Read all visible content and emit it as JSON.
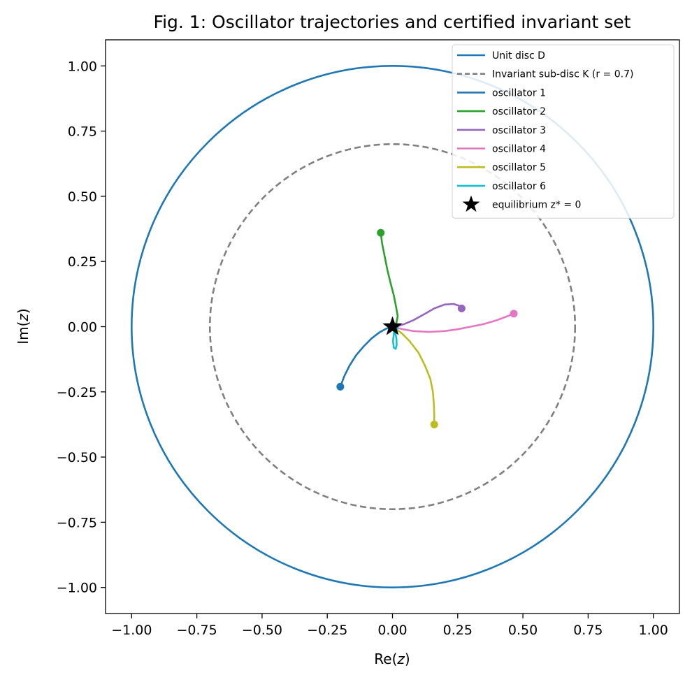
{
  "chart_data": {
    "type": "line",
    "title": "Fig. 1: Oscillator trajectories and certified invariant set",
    "xlabel": "Re(z)",
    "ylabel": "Im(z)",
    "xlim": [
      -1.1,
      1.1
    ],
    "ylim": [
      -1.1,
      1.1
    ],
    "xticks": [
      -1.0,
      -0.75,
      -0.5,
      -0.25,
      0.0,
      0.25,
      0.5,
      0.75,
      1.0
    ],
    "yticks": [
      -1.0,
      -0.75,
      -0.5,
      -0.25,
      0.0,
      0.25,
      0.5,
      0.75,
      1.0
    ],
    "xtick_labels": [
      "−1.00",
      "−0.75",
      "−0.50",
      "−0.25",
      "0.00",
      "0.25",
      "0.50",
      "0.75",
      "1.00"
    ],
    "ytick_labels": [
      "−1.00",
      "−0.75",
      "−0.50",
      "−0.25",
      "0.00",
      "0.25",
      "0.50",
      "0.75",
      "1.00"
    ],
    "grid": false,
    "legend_position": "top-right",
    "unit_disc": {
      "label": "Unit disc D",
      "radius": 1.0,
      "color": "#1f77b4",
      "style": "solid"
    },
    "invariant_disc": {
      "label": "Invariant sub-disc K (r = 0.7)",
      "radius": 0.7,
      "color": "#808080",
      "style": "dashed"
    },
    "series": [
      {
        "name": "oscillator 1",
        "color": "#1f77b4",
        "points": [
          [
            -0.2,
            -0.23
          ],
          [
            -0.185,
            -0.19
          ],
          [
            -0.165,
            -0.15
          ],
          [
            -0.14,
            -0.11
          ],
          [
            -0.11,
            -0.075
          ],
          [
            -0.08,
            -0.045
          ],
          [
            -0.05,
            -0.022
          ],
          [
            -0.025,
            -0.008
          ],
          [
            0,
            0
          ]
        ]
      },
      {
        "name": "oscillator 2",
        "color": "#2ca02c",
        "points": [
          [
            -0.045,
            0.36
          ],
          [
            -0.04,
            0.32
          ],
          [
            -0.03,
            0.27
          ],
          [
            -0.02,
            0.22
          ],
          [
            -0.008,
            0.17
          ],
          [
            0.005,
            0.12
          ],
          [
            0.014,
            0.075
          ],
          [
            0.02,
            0.04
          ],
          [
            0.015,
            0.015
          ],
          [
            0,
            0
          ]
        ]
      },
      {
        "name": "oscillator 3",
        "color": "#9467bd",
        "points": [
          [
            0.265,
            0.07
          ],
          [
            0.255,
            0.08
          ],
          [
            0.235,
            0.087
          ],
          [
            0.2,
            0.085
          ],
          [
            0.16,
            0.07
          ],
          [
            0.12,
            0.047
          ],
          [
            0.08,
            0.025
          ],
          [
            0.045,
            0.01
          ],
          [
            0.02,
            0.002
          ],
          [
            0,
            0
          ]
        ]
      },
      {
        "name": "oscillator 4",
        "color": "#e377c2",
        "points": [
          [
            0.465,
            0.05
          ],
          [
            0.44,
            0.04
          ],
          [
            0.4,
            0.025
          ],
          [
            0.35,
            0.01
          ],
          [
            0.3,
            0
          ],
          [
            0.25,
            -0.01
          ],
          [
            0.2,
            -0.017
          ],
          [
            0.14,
            -0.02
          ],
          [
            0.08,
            -0.017
          ],
          [
            0.04,
            -0.01
          ],
          [
            0,
            0
          ]
        ]
      },
      {
        "name": "oscillator 5",
        "color": "#bcbd22",
        "points": [
          [
            0.16,
            -0.375
          ],
          [
            0.16,
            -0.34
          ],
          [
            0.159,
            -0.3
          ],
          [
            0.155,
            -0.25
          ],
          [
            0.145,
            -0.2
          ],
          [
            0.125,
            -0.15
          ],
          [
            0.1,
            -0.1
          ],
          [
            0.065,
            -0.055
          ],
          [
            0.035,
            -0.025
          ],
          [
            0.012,
            -0.008
          ],
          [
            0,
            0
          ]
        ]
      },
      {
        "name": "oscillator 6",
        "color": "#17becf",
        "points": [
          [
            0.008,
            -0.005
          ],
          [
            0.005,
            -0.03
          ],
          [
            0.002,
            -0.055
          ],
          [
            0.005,
            -0.08
          ],
          [
            0.012,
            -0.085
          ],
          [
            0.016,
            -0.07
          ],
          [
            0.015,
            -0.045
          ],
          [
            0.01,
            -0.02
          ],
          [
            0.004,
            -0.005
          ],
          [
            0,
            0
          ]
        ]
      }
    ],
    "equilibrium": {
      "label": "equilibrium z* = 0",
      "x": 0,
      "y": 0,
      "marker": "star",
      "color": "#000000"
    },
    "legend_entries": [
      "Unit disc D",
      "Invariant sub-disc K (r = 0.7)",
      "oscillator 1",
      "oscillator 2",
      "oscillator 3",
      "oscillator 4",
      "oscillator 5",
      "oscillator 6",
      "equilibrium z* = 0"
    ]
  }
}
